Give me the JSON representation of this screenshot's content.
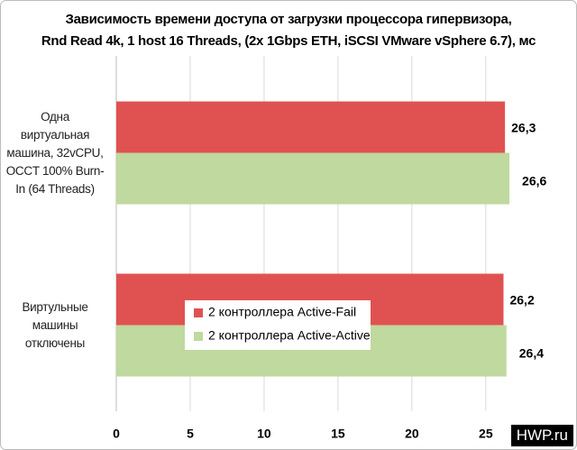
{
  "chart_data": {
    "type": "barh",
    "title": "Зависимость времени доступа от загрузки процессора гипервизора,\nRnd Read 4k, 1 host 16 Threads, (2x 1Gbps ETH, iSCSI VMware vSphere 6.7), мс",
    "categories": [
      "Одна\nвиртуальная\nмашина, 32vCPU,\nOCCT 100% Burn-\nIn (64 Threads)",
      "Виртульные\nмашины\nотключены"
    ],
    "series": [
      {
        "name": "2 контроллера Active-Fail",
        "color": "#e05252",
        "values": [
          26.3,
          26.2
        ],
        "value_labels": [
          "26,3",
          "26,2"
        ]
      },
      {
        "name": "2 контроллера Active-Active",
        "color": "#bfd99e",
        "values": [
          26.6,
          26.4
        ],
        "value_labels": [
          "26,6",
          "26,4"
        ]
      }
    ],
    "xlim": [
      0,
      28
    ],
    "xticks": [
      0,
      5,
      10,
      15,
      20,
      25
    ],
    "grid": true,
    "watermark": "HWP.ru"
  }
}
